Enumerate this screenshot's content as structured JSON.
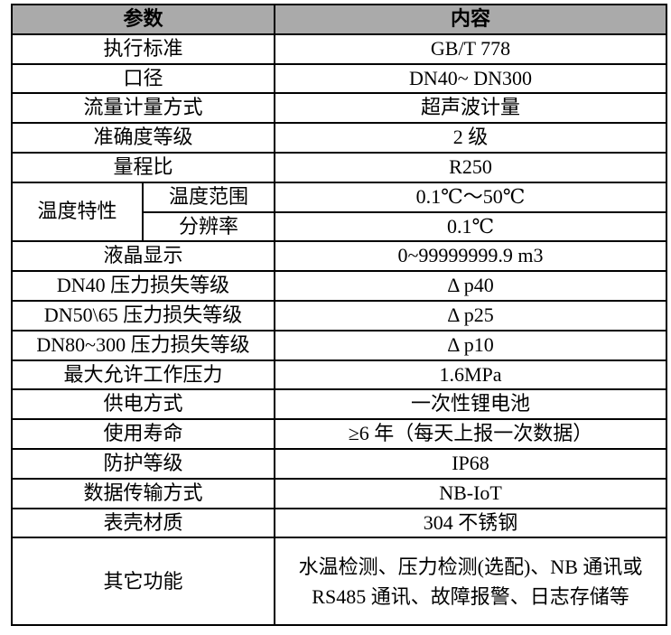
{
  "table": {
    "title_hint": "product specification table",
    "colors": {
      "header_bg": "#AAAAAA",
      "border": "#000000",
      "text": "#000000"
    },
    "header": {
      "param": "参数",
      "content": "内容"
    },
    "temp_group_label": "温度特性",
    "rows": [
      {
        "label": "执行标准",
        "value": "GB/T 778"
      },
      {
        "label": "口径",
        "value": "DN40~ DN300"
      },
      {
        "label": "流量计量方式",
        "value": "超声波计量"
      },
      {
        "label": "准确度等级",
        "value": "2 级"
      },
      {
        "label": "量程比",
        "value": "R250"
      },
      {
        "label": "温度范围",
        "value": "0.1℃～50℃"
      },
      {
        "label": "分辨率",
        "value": "0.1℃"
      },
      {
        "label": "液晶显示",
        "value": "0~99999999.9 m3"
      },
      {
        "label": "DN40 压力损失等级",
        "value": "Δ p40"
      },
      {
        "label": "DN50\\65 压力损失等级",
        "value": "Δ p25"
      },
      {
        "label": "DN80~300 压力损失等级",
        "value": "Δ p10"
      },
      {
        "label": "最大允许工作压力",
        "value": "1.6MPa"
      },
      {
        "label": "供电方式",
        "value": "一次性锂电池"
      },
      {
        "label": "使用寿命",
        "value": "≥6 年（每天上报一次数据）"
      },
      {
        "label": "防护等级",
        "value": "IP68"
      },
      {
        "label": "数据传输方式",
        "value": "NB-IoT"
      },
      {
        "label": "表壳材质",
        "value": "304 不锈钢"
      },
      {
        "label": "其它功能",
        "value": "水温检测、压力检测(选配)、NB 通讯或 RS485 通讯、故障报警、日志存储等"
      }
    ]
  }
}
